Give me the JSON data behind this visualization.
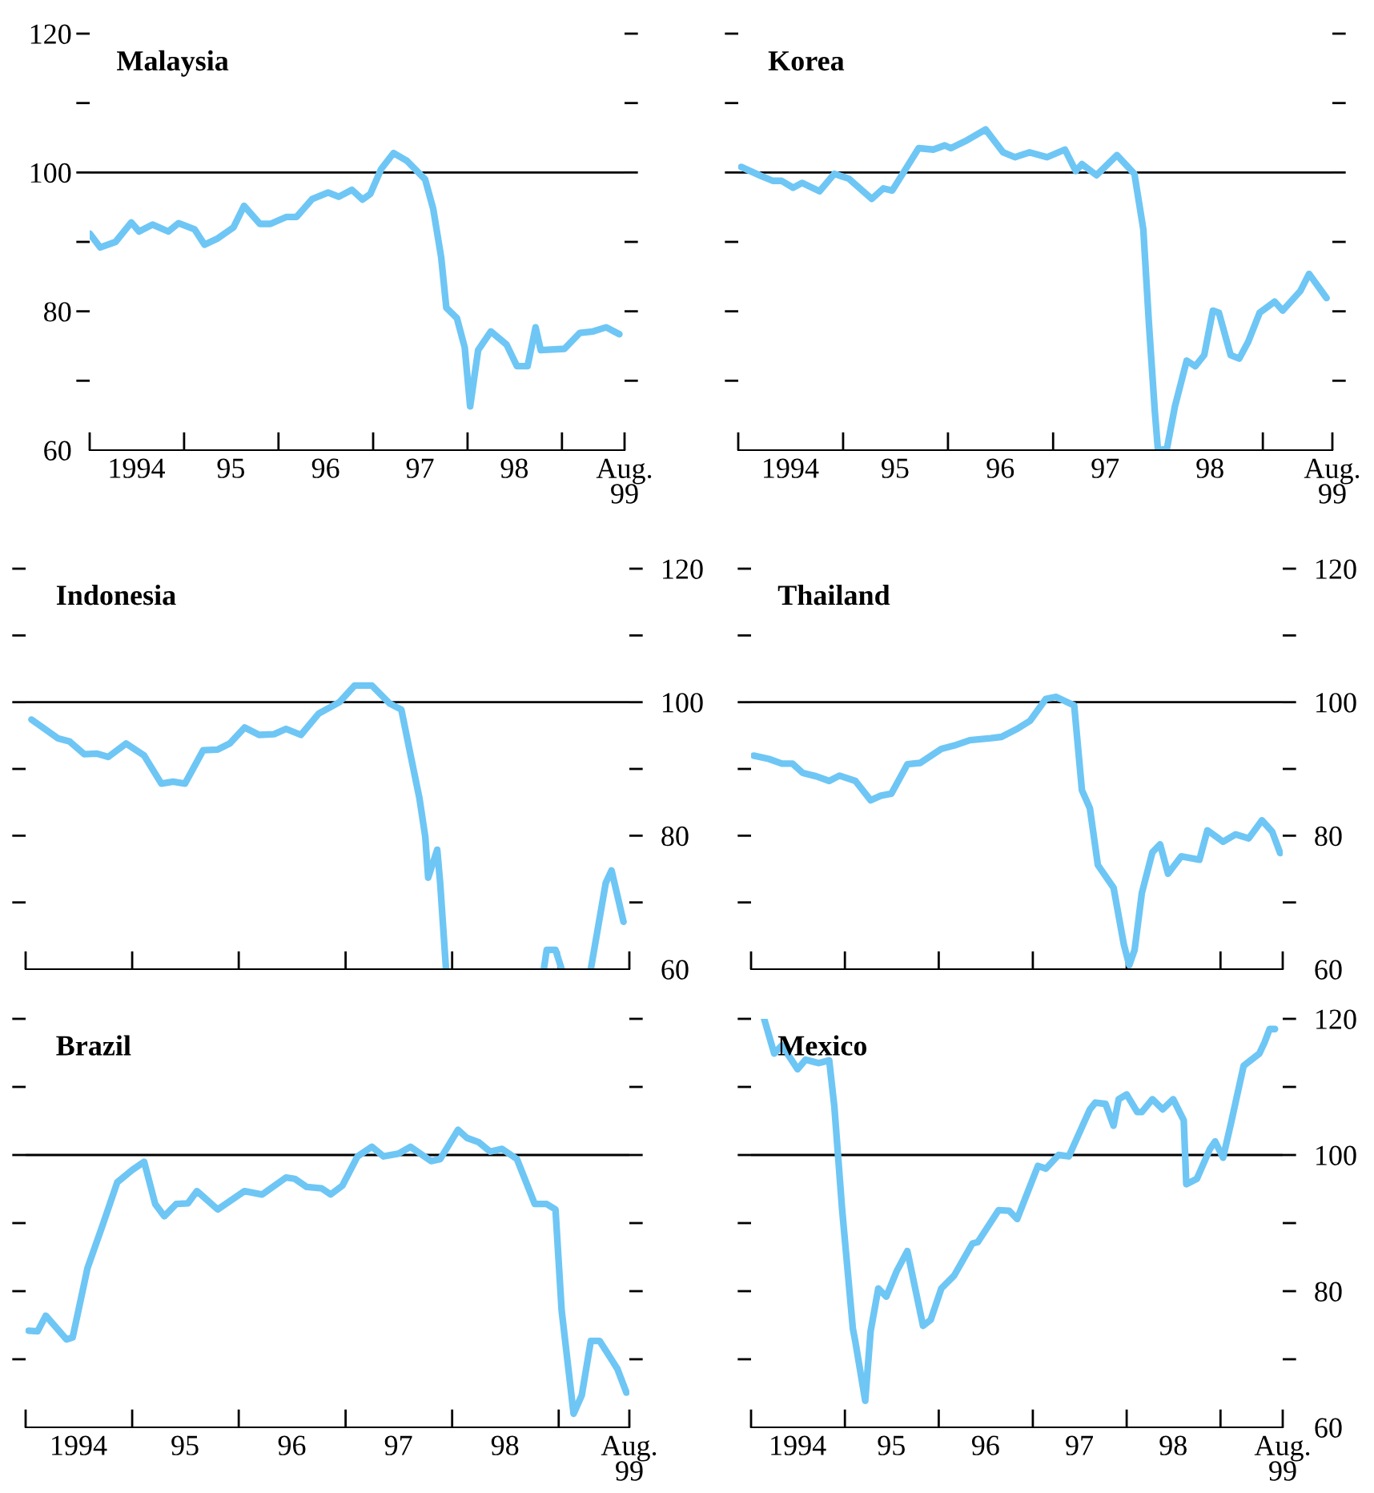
{
  "chart_data": [
    {
      "type": "line",
      "title": "Malaysia",
      "xlim": [
        "1994-01-01",
        "1999-08-31"
      ],
      "xticks": [
        {
          "value": "1994-01-01",
          "label": null
        },
        {
          "value": "1994-07-01",
          "label": "1994"
        },
        {
          "value": "1995-01-01",
          "label": null
        },
        {
          "value": "1995-07-01",
          "label": "95"
        },
        {
          "value": "1996-01-01",
          "label": null
        },
        {
          "value": "1996-07-01",
          "label": "96"
        },
        {
          "value": "1997-01-01",
          "label": null
        },
        {
          "value": "1997-07-01",
          "label": "97"
        },
        {
          "value": "1998-01-01",
          "label": null
        },
        {
          "value": "1998-07-01",
          "label": "98"
        },
        {
          "value": "1999-01-01",
          "label": null
        },
        {
          "value": "1999-08-31",
          "label": "Aug.\n99"
        }
      ],
      "ylim": [
        60,
        120
      ],
      "yticks": [
        60,
        {
          "value": 70,
          "label": null
        },
        80,
        {
          "value": 90,
          "label": null
        },
        100,
        {
          "value": 110,
          "label": null
        },
        120
      ],
      "ref_lines": [
        {
          "axis": "y",
          "value": 100,
          "color": "#000000"
        }
      ],
      "series": [
        {
          "color": "#6ec6f5",
          "x": [
            "1994-01-01",
            "1994-02-11",
            "1994-04-11",
            "1994-06-11",
            "1994-07-11",
            "1994-09-01",
            "1994-11-01",
            "1994-12-11",
            "1995-02-11",
            "1995-03-21",
            "1995-05-11",
            "1995-07-11",
            "1995-08-21",
            "1995-10-21",
            "1995-12-01",
            "1996-02-01",
            "1996-03-11",
            "1996-05-11",
            "1996-07-11",
            "1996-08-21",
            "1996-10-11",
            "1996-11-21",
            "1996-12-21",
            "1997-02-01",
            "1997-03-21",
            "1997-05-11",
            "1997-07-21",
            "1997-08-21",
            "1997-09-21",
            "1997-10-11",
            "1997-11-21",
            "1997-12-21",
            "1998-01-11",
            "1998-02-11",
            "1998-04-01",
            "1998-06-01",
            "1998-07-11",
            "1998-08-21",
            "1998-09-21",
            "1998-10-11",
            "1999-01-11",
            "1999-03-11",
            "1999-05-01",
            "1999-06-21",
            "1999-08-11"
          ],
          "values": [
            91.2,
            89.2,
            90,
            92.8,
            91.5,
            92.5,
            91.5,
            92.7,
            91.8,
            89.6,
            90.5,
            92.1,
            95.2,
            92.6,
            92.6,
            93.6,
            93.6,
            96.2,
            97.1,
            96.5,
            97.5,
            96.1,
            96.9,
            100.5,
            102.8,
            101.7,
            99,
            94.8,
            87.8,
            80.5,
            79,
            74.8,
            66.3,
            74.4,
            77.1,
            75.2,
            72.1,
            72.1,
            77.7,
            74.4,
            74.6,
            76.9,
            77.1,
            77.7,
            76.7
          ]
        }
      ]
    },
    {
      "type": "line",
      "title": "Korea",
      "tick_labels": "x",
      "xlim": [
        "1994-01-01",
        "1999-08-31"
      ],
      "xticks": [
        {
          "value": "1994-01-01",
          "label": null
        },
        {
          "value": "1994-07-01",
          "label": "1994"
        },
        {
          "value": "1995-01-01",
          "label": null
        },
        {
          "value": "1995-07-01",
          "label": "95"
        },
        {
          "value": "1996-01-01",
          "label": null
        },
        {
          "value": "1996-07-01",
          "label": "96"
        },
        {
          "value": "1997-01-01",
          "label": null
        },
        {
          "value": "1997-07-01",
          "label": "97"
        },
        {
          "value": "1998-01-01",
          "label": null
        },
        {
          "value": "1998-07-01",
          "label": "98"
        },
        {
          "value": "1999-01-01",
          "label": null
        },
        {
          "value": "1999-08-31",
          "label": "Aug.\n99"
        }
      ],
      "ylim": [
        60,
        120
      ],
      "yticks": [
        {
          "value": 70,
          "label": null
        },
        {
          "value": 80,
          "label": null
        },
        {
          "value": 90,
          "label": null
        },
        {
          "value": 100,
          "label": null
        },
        {
          "value": 110,
          "label": null
        },
        {
          "value": 120,
          "label": null
        }
      ],
      "ref_lines": [
        {
          "axis": "y",
          "value": 100,
          "color": "#000000"
        }
      ],
      "series": [
        {
          "color": "#6ec6f5",
          "x": [
            "1994-01-11",
            "1994-03-21",
            "1994-05-01",
            "1994-06-01",
            "1994-07-11",
            "1994-08-11",
            "1994-10-11",
            "1994-12-01",
            "1995-01-21",
            "1995-04-11",
            "1995-05-21",
            "1995-06-21",
            "1995-09-21",
            "1995-11-11",
            "1995-12-21",
            "1996-01-11",
            "1996-03-01",
            "1996-05-11",
            "1996-07-11",
            "1996-08-21",
            "1996-10-11",
            "1996-12-11",
            "1997-02-11",
            "1997-03-21",
            "1997-04-11",
            "1997-06-01",
            "1997-08-11",
            "1997-10-11",
            "1997-11-11",
            "1997-12-01",
            "1997-12-21",
            "1998-01-01",
            "1998-02-01",
            "1998-03-01",
            "1998-04-11",
            "1998-05-11",
            "1998-06-11",
            "1998-07-11",
            "1998-08-01",
            "1998-09-11",
            "1998-10-11",
            "1998-11-11",
            "1998-12-21",
            "1999-02-11",
            "1999-03-11",
            "1999-05-11",
            "1999-06-11",
            "1999-08-11"
          ],
          "values": [
            100.8,
            99.5,
            98.8,
            98.8,
            97.8,
            98.5,
            97.3,
            99.8,
            99.1,
            96.2,
            97.7,
            97.4,
            103.5,
            103.3,
            103.9,
            103.5,
            104.5,
            106.2,
            102.9,
            102.2,
            102.9,
            102.2,
            103.3,
            100.2,
            101.2,
            99.6,
            102.5,
            99.8,
            91.8,
            77.9,
            65.6,
            60,
            60.2,
            66.3,
            72.9,
            72.1,
            73.7,
            80.1,
            79.8,
            73.7,
            73.2,
            75.6,
            79.8,
            81.4,
            80.1,
            82.9,
            85.4,
            81.9
          ]
        }
      ]
    },
    {
      "type": "line",
      "title": "Indonesia",
      "tick_labels": "y",
      "xlim": [
        "1994-01-01",
        "1999-08-31"
      ],
      "xticks": [
        {
          "value": "1994-01-01",
          "label": null
        },
        {
          "value": "1995-01-01",
          "label": null
        },
        {
          "value": "1996-01-01",
          "label": null
        },
        {
          "value": "1997-01-01",
          "label": null
        },
        {
          "value": "1998-01-01",
          "label": null
        },
        {
          "value": "1999-01-01",
          "label": null
        },
        {
          "value": "1999-08-31",
          "label": null
        }
      ],
      "y2lim": [
        60,
        120
      ],
      "y2ticks": [
        60,
        {
          "value": 70,
          "label": null
        },
        80,
        {
          "value": 90,
          "label": null
        },
        100,
        {
          "value": 110,
          "label": null
        },
        120
      ],
      "ref_lines": [
        {
          "axis": "y2",
          "value": 100,
          "color": "#000000"
        }
      ],
      "series": [
        {
          "color": "#6ec6f5",
          "axis": "y2",
          "x": [
            "1994-01-21",
            "1994-03-01",
            "1994-04-21",
            "1994-06-01",
            "1994-07-21",
            "1994-09-01",
            "1994-10-11",
            "1994-12-11",
            "1995-02-11",
            "1995-04-11",
            "1995-05-21",
            "1995-07-01",
            "1995-09-01",
            "1995-10-21",
            "1995-12-01",
            "1996-01-21",
            "1996-03-11",
            "1996-05-01",
            "1996-06-11",
            "1996-08-01",
            "1996-10-01",
            "1996-12-11",
            "1997-02-01",
            "1997-04-01",
            "1997-06-01",
            "1997-07-11",
            "1997-08-11",
            "1997-09-11",
            "1997-10-01",
            "1997-10-11",
            "1997-11-11",
            "1997-11-21",
            "1997-12-11",
            "1998-03-11",
            "1998-11-11",
            "1998-11-21",
            "1998-12-21",
            "1999-01-11",
            "1999-02-21",
            "1999-04-21",
            "1999-06-11",
            "1999-07-01",
            "1999-08-11"
          ],
          "values": [
            97.4,
            96.2,
            94.6,
            94.1,
            92.2,
            92.3,
            91.8,
            93.8,
            92,
            87.8,
            88.1,
            87.8,
            92.8,
            92.9,
            93.8,
            96.2,
            95.1,
            95.2,
            96,
            95.1,
            98.3,
            100,
            102.5,
            102.5,
            99.8,
            98.9,
            92.2,
            85.6,
            79.8,
            73.7,
            77.9,
            72.9,
            60,
            null,
            60,
            62.9,
            62.9,
            60,
            null,
            60,
            72.9,
            74.8,
            67.1
          ]
        }
      ]
    },
    {
      "type": "line",
      "title": "Thailand",
      "tick_labels": "y",
      "xlim": [
        "1994-01-01",
        "1999-08-31"
      ],
      "xticks": [
        {
          "value": "1994-01-01",
          "label": null
        },
        {
          "value": "1995-01-01",
          "label": null
        },
        {
          "value": "1996-01-01",
          "label": null
        },
        {
          "value": "1997-01-01",
          "label": null
        },
        {
          "value": "1998-01-01",
          "label": null
        },
        {
          "value": "1999-01-01",
          "label": null
        },
        {
          "value": "1999-08-31",
          "label": null
        }
      ],
      "y2lim": [
        60,
        120
      ],
      "y2ticks": [
        60,
        {
          "value": 70,
          "label": null
        },
        80,
        {
          "value": 90,
          "label": null
        },
        100,
        {
          "value": 110,
          "label": null
        },
        120
      ],
      "ref_lines": [
        {
          "axis": "y2",
          "value": 100,
          "color": "#000000"
        }
      ],
      "series": [
        {
          "color": "#6ec6f5",
          "axis": "y2",
          "x": [
            "1994-01-11",
            "1994-03-11",
            "1994-05-01",
            "1994-06-11",
            "1994-07-21",
            "1994-09-11",
            "1994-11-01",
            "1994-12-11",
            "1995-02-11",
            "1995-04-11",
            "1995-05-21",
            "1995-07-01",
            "1995-09-01",
            "1995-10-21",
            "1996-01-11",
            "1996-03-01",
            "1996-05-01",
            "1996-07-21",
            "1996-09-01",
            "1996-11-01",
            "1996-12-21",
            "1997-02-21",
            "1997-04-01",
            "1997-06-11",
            "1997-07-11",
            "1997-08-11",
            "1997-09-11",
            "1997-11-11",
            "1997-12-21",
            "1998-01-11",
            "1998-02-01",
            "1998-03-01",
            "1998-04-11",
            "1998-05-11",
            "1998-06-11",
            "1998-08-01",
            "1998-10-11",
            "1998-11-11",
            "1999-01-11",
            "1999-03-01",
            "1999-04-21",
            "1999-06-11",
            "1999-07-21",
            "1999-08-21"
          ],
          "values": [
            92,
            91.5,
            90.8,
            90.8,
            89.4,
            88.9,
            88.2,
            89,
            88.2,
            85.3,
            86,
            86.3,
            90.7,
            90.9,
            93,
            93.5,
            94.3,
            94.6,
            94.8,
            96,
            97.2,
            100.5,
            100.8,
            99.5,
            86.8,
            84.1,
            75.6,
            72.2,
            63.7,
            60.6,
            62.9,
            71.4,
            77.5,
            78.7,
            74.3,
            76.9,
            76.4,
            80.8,
            79.1,
            80.2,
            79.6,
            82.3,
            80.6,
            77.4
          ]
        }
      ]
    },
    {
      "type": "line",
      "title": "Brazil",
      "tick_labels": "x",
      "xlim": [
        "1994-01-01",
        "1999-08-31"
      ],
      "xticks": [
        {
          "value": "1994-01-01",
          "label": null
        },
        {
          "value": "1994-07-01",
          "label": "1994"
        },
        {
          "value": "1995-01-01",
          "label": null
        },
        {
          "value": "1995-07-01",
          "label": "95"
        },
        {
          "value": "1996-01-01",
          "label": null
        },
        {
          "value": "1996-07-01",
          "label": "96"
        },
        {
          "value": "1997-01-01",
          "label": null
        },
        {
          "value": "1997-07-01",
          "label": "97"
        },
        {
          "value": "1998-01-01",
          "label": null
        },
        {
          "value": "1998-07-01",
          "label": "98"
        },
        {
          "value": "1999-01-01",
          "label": null
        },
        {
          "value": "1999-08-31",
          "label": "Aug.\n99"
        }
      ],
      "ylim": [
        60,
        120
      ],
      "yticks": [
        {
          "value": 70,
          "label": null
        },
        {
          "value": 80,
          "label": null
        },
        {
          "value": 90,
          "label": null
        },
        {
          "value": 100,
          "label": null
        },
        {
          "value": 110,
          "label": null
        },
        {
          "value": 120,
          "label": null
        }
      ],
      "ref_lines": [
        {
          "axis": "y",
          "value": 100,
          "color": "#000000"
        }
      ],
      "series": [
        {
          "color": "#6ec6f5",
          "x": [
            "1994-01-11",
            "1994-02-11",
            "1994-03-11",
            "1994-05-21",
            "1994-06-11",
            "1994-08-01",
            "1994-09-21",
            "1994-11-11",
            "1995-01-01",
            "1995-02-11",
            "1995-03-21",
            "1995-04-21",
            "1995-06-01",
            "1995-07-11",
            "1995-08-11",
            "1995-10-21",
            "1995-12-01",
            "1996-01-21",
            "1996-03-21",
            "1996-06-11",
            "1996-07-11",
            "1996-08-21",
            "1996-10-11",
            "1996-11-11",
            "1996-12-21",
            "1997-02-11",
            "1997-04-01",
            "1997-05-11",
            "1997-07-01",
            "1997-08-11",
            "1997-10-21",
            "1997-11-21",
            "1998-01-21",
            "1998-02-21",
            "1998-04-01",
            "1998-05-11",
            "1998-06-21",
            "1998-08-11",
            "1998-10-11",
            "1998-11-21",
            "1998-12-21",
            "1999-01-11",
            "1999-02-21",
            "1999-03-21",
            "1999-04-21",
            "1999-05-21",
            "1999-07-21",
            "1999-08-21"
          ],
          "values": [
            74.2,
            74.1,
            76.4,
            72.9,
            73.2,
            83.4,
            89.6,
            96,
            97.8,
            99,
            92.8,
            91,
            92.8,
            92.9,
            94.7,
            92,
            93.2,
            94.7,
            94.2,
            96.7,
            96.5,
            95.3,
            95.1,
            94.2,
            95.5,
            99.8,
            101.2,
            99.8,
            100.2,
            101.2,
            99.1,
            99.4,
            103.7,
            102.5,
            101.9,
            100.5,
            100.9,
            99.4,
            92.8,
            92.8,
            92,
            77.2,
            62,
            64.7,
            72.7,
            72.7,
            68.6,
            65.1
          ]
        }
      ]
    },
    {
      "type": "line",
      "title": "Mexico",
      "xlim": [
        "1994-01-01",
        "1999-08-31"
      ],
      "xticks": [
        {
          "value": "1994-01-01",
          "label": null
        },
        {
          "value": "1994-07-01",
          "label": "1994"
        },
        {
          "value": "1995-01-01",
          "label": null
        },
        {
          "value": "1995-07-01",
          "label": "95"
        },
        {
          "value": "1996-01-01",
          "label": null
        },
        {
          "value": "1996-07-01",
          "label": "96"
        },
        {
          "value": "1997-01-01",
          "label": null
        },
        {
          "value": "1997-07-01",
          "label": "97"
        },
        {
          "value": "1998-01-01",
          "label": null
        },
        {
          "value": "1998-07-01",
          "label": "98"
        },
        {
          "value": "1999-01-01",
          "label": null
        },
        {
          "value": "1999-08-31",
          "label": "Aug.\n99"
        }
      ],
      "y2lim": [
        60,
        120
      ],
      "y2ticks": [
        60,
        {
          "value": 70,
          "label": null
        },
        80,
        {
          "value": 90,
          "label": null
        },
        100,
        {
          "value": 110,
          "label": null
        },
        120
      ],
      "ref_lines": [
        {
          "axis": "y2",
          "value": 100,
          "color": "#000000"
        }
      ],
      "series": [
        {
          "color": "#6ec6f5",
          "axis": "y2",
          "x": [
            "1994-02-21",
            "1994-04-01",
            "1994-05-01",
            "1994-07-01",
            "1994-08-01",
            "1994-09-21",
            "1994-11-01",
            "1994-11-21",
            "1994-12-21",
            "1995-02-01",
            "1995-02-11",
            "1995-03-21",
            "1995-04-11",
            "1995-05-11",
            "1995-06-11",
            "1995-07-21",
            "1995-09-01",
            "1995-11-01",
            "1995-12-01",
            "1996-01-11",
            "1996-03-01",
            "1996-05-11",
            "1996-06-01",
            "1996-08-21",
            "1996-10-01",
            "1996-11-01",
            "1997-01-21",
            "1997-02-21",
            "1997-04-11",
            "1997-05-21",
            "1997-08-11",
            "1997-09-01",
            "1997-10-11",
            "1997-11-11",
            "1997-12-01",
            "1998-01-01",
            "1998-02-11",
            "1998-03-01",
            "1998-04-11",
            "1998-05-21",
            "1998-07-01",
            "1998-08-11",
            "1998-08-21",
            "1998-10-01",
            "1998-11-21",
            "1998-12-11",
            "1999-01-11",
            "1999-02-11",
            "1999-04-01",
            "1999-06-01",
            "1999-06-21",
            "1999-07-11",
            "1999-08-01"
          ],
          "values": [
            120,
            114.9,
            116.1,
            112.6,
            114,
            113.5,
            113.9,
            107.1,
            92.1,
            74.5,
            72.5,
            63.9,
            74.1,
            80.4,
            79.2,
            82.9,
            85.9,
            74.9,
            75.8,
            80.4,
            82.3,
            87,
            87.2,
            91.9,
            91.8,
            90.6,
            98.4,
            98,
            100,
            99.8,
            106.7,
            107.7,
            107.5,
            104.3,
            108.2,
            108.9,
            106.3,
            106.3,
            108.2,
            106.7,
            108.2,
            105.1,
            95.7,
            96.5,
            100.9,
            102,
            99.6,
            104.7,
            113.1,
            114.9,
            116.5,
            118.5,
            118.5
          ]
        }
      ]
    }
  ]
}
